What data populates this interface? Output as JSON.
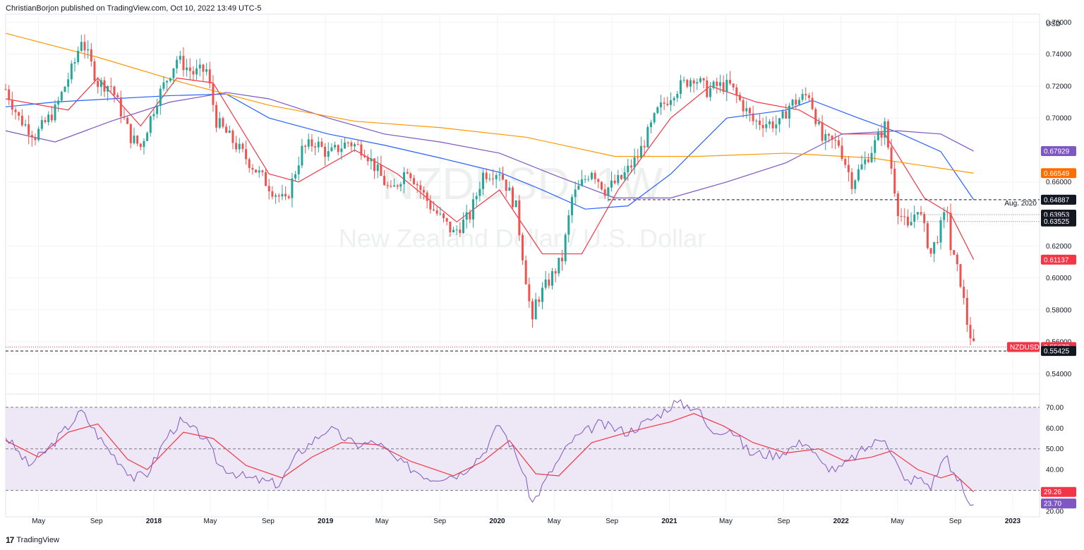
{
  "header": {
    "author": "ChristianBorjon",
    "published_text": "published on TradingView.com, Oct 10, 2022 13:49 UTC-5"
  },
  "watermark": {
    "symbol": "NZDUSD, 1W",
    "description": "New Zealand Dollar / U.S. Dollar"
  },
  "footer": {
    "logo_glyph": "17",
    "brand": "TradingView"
  },
  "colors": {
    "up": "#26a69a",
    "down": "#ef5350",
    "sma_red": "#f23645",
    "sma_blue": "#2962ff",
    "sma_purple": "#7e57c2",
    "sma_orange": "#ff9800",
    "rsi_line": "#7e57c2",
    "rsi_ma": "#f23645",
    "rsi_band": "#ede7f6"
  },
  "chart_data": [
    {
      "type": "candlestick",
      "symbol": "NZDUSD",
      "timeframe": "1W",
      "currency": "USD",
      "ylim": [
        0.53,
        0.765
      ],
      "y_ticks": [
        "0.76000",
        "0.74000",
        "0.72000",
        "0.70000",
        "0.66000",
        "0.62000",
        "0.60000",
        "0.58000",
        "0.56000",
        "0.54000"
      ],
      "x_ticks": [
        "May",
        "Sep",
        "2018",
        "May",
        "Sep",
        "2019",
        "May",
        "Sep",
        "2020",
        "May",
        "Sep",
        "2021",
        "May",
        "Sep",
        "2022",
        "May",
        "Sep",
        "2023"
      ],
      "x_range": [
        "2017-02-20",
        "2023-02-27"
      ],
      "tick_dates": [
        "2017-05-01",
        "2017-09-01",
        "2018-01-01",
        "2018-05-01",
        "2018-09-01",
        "2019-01-01",
        "2019-05-01",
        "2019-09-01",
        "2020-01-01",
        "2020-05-01",
        "2020-09-01",
        "2021-01-01",
        "2021-05-01",
        "2021-09-01",
        "2022-01-01",
        "2022-05-01",
        "2022-09-01",
        "2023-01-01"
      ],
      "close_path": [
        [
          "2017-02-20",
          0.718
        ],
        [
          "2017-03-20",
          0.7
        ],
        [
          "2017-04-24",
          0.689
        ],
        [
          "2017-06-05",
          0.705
        ],
        [
          "2017-07-17",
          0.735
        ],
        [
          "2017-07-31",
          0.75
        ],
        [
          "2017-09-04",
          0.722
        ],
        [
          "2017-10-02",
          0.72
        ],
        [
          "2017-11-13",
          0.688
        ],
        [
          "2017-12-04",
          0.682
        ],
        [
          "2018-01-08",
          0.712
        ],
        [
          "2018-02-19",
          0.737
        ],
        [
          "2018-03-26",
          0.728
        ],
        [
          "2018-04-23",
          0.73
        ],
        [
          "2018-05-14",
          0.698
        ],
        [
          "2018-06-11",
          0.688
        ],
        [
          "2018-07-16",
          0.675
        ],
        [
          "2018-09-10",
          0.655
        ],
        [
          "2018-10-08",
          0.647
        ],
        [
          "2018-11-12",
          0.68
        ],
        [
          "2018-12-10",
          0.685
        ],
        [
          "2019-01-07",
          0.677
        ],
        [
          "2019-02-18",
          0.685
        ],
        [
          "2019-03-25",
          0.68
        ],
        [
          "2019-05-20",
          0.653
        ],
        [
          "2019-06-24",
          0.669
        ],
        [
          "2019-08-12",
          0.645
        ],
        [
          "2019-09-30",
          0.628
        ],
        [
          "2019-11-04",
          0.639
        ],
        [
          "2019-12-02",
          0.665
        ],
        [
          "2020-01-06",
          0.667
        ],
        [
          "2020-02-10",
          0.644
        ],
        [
          "2020-03-16",
          0.57
        ],
        [
          "2020-03-23",
          0.585
        ],
        [
          "2020-04-20",
          0.598
        ],
        [
          "2020-05-18",
          0.612
        ],
        [
          "2020-06-08",
          0.65
        ],
        [
          "2020-07-20",
          0.668
        ],
        [
          "2020-08-17",
          0.655
        ],
        [
          "2020-09-21",
          0.662
        ],
        [
          "2020-10-26",
          0.676
        ],
        [
          "2020-12-07",
          0.704
        ],
        [
          "2021-01-11",
          0.717
        ],
        [
          "2021-02-22",
          0.726
        ],
        [
          "2021-03-22",
          0.717
        ],
        [
          "2021-04-12",
          0.72
        ],
        [
          "2021-05-10",
          0.72
        ],
        [
          "2021-06-28",
          0.698
        ],
        [
          "2021-08-23",
          0.696
        ],
        [
          "2021-09-13",
          0.708
        ],
        [
          "2021-10-25",
          0.715
        ],
        [
          "2021-11-22",
          0.686
        ],
        [
          "2021-12-27",
          0.684
        ],
        [
          "2022-01-24",
          0.66
        ],
        [
          "2022-02-21",
          0.673
        ],
        [
          "2022-04-04",
          0.695
        ],
        [
          "2022-05-02",
          0.643
        ],
        [
          "2022-05-23",
          0.63
        ],
        [
          "2022-06-13",
          0.645
        ],
        [
          "2022-07-11",
          0.615
        ],
        [
          "2022-08-15",
          0.643
        ],
        [
          "2022-08-22",
          0.618
        ],
        [
          "2022-09-12",
          0.598
        ],
        [
          "2022-09-26",
          0.572
        ],
        [
          "2022-10-10",
          0.5567
        ]
      ],
      "moving_averages": [
        {
          "color": "#f23645",
          "last": 0.61137,
          "path": [
            [
              "2017-02-20",
              0.712
            ],
            [
              "2017-07-03",
              0.705
            ],
            [
              "2017-09-04",
              0.725
            ],
            [
              "2017-12-04",
              0.695
            ],
            [
              "2018-02-19",
              0.725
            ],
            [
              "2018-05-07",
              0.722
            ],
            [
              "2018-09-03",
              0.665
            ],
            [
              "2018-11-05",
              0.66
            ],
            [
              "2019-03-04",
              0.68
            ],
            [
              "2019-06-03",
              0.665
            ],
            [
              "2019-10-07",
              0.635
            ],
            [
              "2020-01-06",
              0.655
            ],
            [
              "2020-04-06",
              0.615
            ],
            [
              "2020-06-29",
              0.615
            ],
            [
              "2020-09-14",
              0.655
            ],
            [
              "2021-01-04",
              0.7
            ],
            [
              "2021-03-29",
              0.72
            ],
            [
              "2021-07-05",
              0.71
            ],
            [
              "2021-10-04",
              0.705
            ],
            [
              "2022-01-03",
              0.69
            ],
            [
              "2022-04-04",
              0.69
            ],
            [
              "2022-06-27",
              0.65
            ],
            [
              "2022-08-22",
              0.64
            ],
            [
              "2022-10-10",
              0.61137
            ]
          ]
        },
        {
          "color": "#2962ff",
          "last": 0.64889,
          "path": [
            [
              "2017-02-20",
              0.707
            ],
            [
              "2017-06-05",
              0.71
            ],
            [
              "2017-10-02",
              0.712
            ],
            [
              "2018-02-05",
              0.714
            ],
            [
              "2018-06-04",
              0.715
            ],
            [
              "2018-09-03",
              0.7
            ],
            [
              "2019-01-07",
              0.69
            ],
            [
              "2019-05-06",
              0.683
            ],
            [
              "2019-09-02",
              0.675
            ],
            [
              "2020-01-06",
              0.666
            ],
            [
              "2020-04-06",
              0.655
            ],
            [
              "2020-07-06",
              0.643
            ],
            [
              "2020-10-05",
              0.645
            ],
            [
              "2021-01-04",
              0.665
            ],
            [
              "2021-05-03",
              0.7
            ],
            [
              "2021-09-06",
              0.705
            ],
            [
              "2021-11-01",
              0.711
            ],
            [
              "2022-02-07",
              0.7
            ],
            [
              "2022-05-02",
              0.691
            ],
            [
              "2022-08-01",
              0.679
            ],
            [
              "2022-10-10",
              0.64889
            ]
          ]
        },
        {
          "color": "#7e57c2",
          "last": 0.67929,
          "path": [
            [
              "2017-02-20",
              0.692
            ],
            [
              "2017-06-05",
              0.685
            ],
            [
              "2017-10-02",
              0.698
            ],
            [
              "2018-02-05",
              0.71
            ],
            [
              "2018-06-04",
              0.716
            ],
            [
              "2018-09-03",
              0.712
            ],
            [
              "2019-01-07",
              0.7
            ],
            [
              "2019-05-06",
              0.69
            ],
            [
              "2019-09-02",
              0.685
            ],
            [
              "2020-01-06",
              0.678
            ],
            [
              "2020-05-04",
              0.664
            ],
            [
              "2020-09-07",
              0.65
            ],
            [
              "2021-01-04",
              0.65
            ],
            [
              "2021-05-03",
              0.66
            ],
            [
              "2021-09-06",
              0.672
            ],
            [
              "2022-01-03",
              0.69
            ],
            [
              "2022-05-02",
              0.692
            ],
            [
              "2022-08-01",
              0.69
            ],
            [
              "2022-10-10",
              0.67929
            ]
          ]
        },
        {
          "color": "#ff9800",
          "last": 0.66549,
          "path": [
            [
              "2017-02-20",
              0.753
            ],
            [
              "2017-09-04",
              0.738
            ],
            [
              "2018-03-05",
              0.722
            ],
            [
              "2018-09-03",
              0.708
            ],
            [
              "2019-03-04",
              0.698
            ],
            [
              "2019-09-02",
              0.694
            ],
            [
              "2020-03-02",
              0.688
            ],
            [
              "2020-09-07",
              0.676
            ],
            [
              "2021-03-01",
              0.676
            ],
            [
              "2021-09-06",
              0.678
            ],
            [
              "2022-03-07",
              0.675
            ],
            [
              "2022-10-10",
              0.66549
            ]
          ]
        }
      ],
      "horizontal_levels": [
        {
          "value": 0.64887,
          "label": "Aug. 2020",
          "from": "2020-08-24",
          "color": "#131722"
        },
        {
          "value": 0.63953,
          "from": "2022-06-13",
          "color": "#787b86"
        },
        {
          "value": 0.63525,
          "from": "2022-06-13",
          "color": "#787b86"
        },
        {
          "value": 0.55425,
          "from": "2017-02-20",
          "color": "#131722"
        }
      ],
      "price_tags": [
        {
          "value": 0.67929,
          "text": "0.67929",
          "bg": "#7e57c2"
        },
        {
          "value": 0.66549,
          "text": "0.66549",
          "bg": "#ff6d00"
        },
        {
          "value": 0.64889,
          "text": "0.64889",
          "bg": "#2962ff"
        },
        {
          "value": 0.64887,
          "text": "0.64887",
          "bg": "#131722"
        },
        {
          "value": 0.63953,
          "text": "0.63953",
          "bg": "#131722"
        },
        {
          "value": 0.63525,
          "text": "0.63525",
          "bg": "#131722"
        },
        {
          "value": 0.61137,
          "text": "0.61137",
          "bg": "#f23645"
        },
        {
          "value": 0.55673,
          "text": "0.55673",
          "bg": "#f23645",
          "symbol_label": "NZDUSD"
        },
        {
          "value": 0.55425,
          "text": "0.55425",
          "bg": "#131722"
        }
      ],
      "last_price": 0.55673
    },
    {
      "type": "line",
      "indicator": "RSI",
      "ylim": [
        20,
        73
      ],
      "y_ticks": [
        "70.00",
        "60.00",
        "50.00",
        "40.00",
        "30.00",
        "20.00"
      ],
      "band": [
        30,
        70
      ],
      "midline": 50,
      "rsi_path": [
        [
          "2017-02-20",
          56
        ],
        [
          "2017-04-10",
          42
        ],
        [
          "2017-05-22",
          50
        ],
        [
          "2017-07-31",
          68
        ],
        [
          "2017-09-18",
          52
        ],
        [
          "2017-11-20",
          36
        ],
        [
          "2017-12-18",
          38
        ],
        [
          "2018-01-29",
          56
        ],
        [
          "2018-02-26",
          63
        ],
        [
          "2018-04-16",
          56
        ],
        [
          "2018-05-21",
          42
        ],
        [
          "2018-07-16",
          36
        ],
        [
          "2018-09-24",
          33
        ],
        [
          "2018-11-05",
          48
        ],
        [
          "2019-01-07",
          60
        ],
        [
          "2019-03-04",
          52
        ],
        [
          "2019-04-22",
          53
        ],
        [
          "2019-06-03",
          44
        ],
        [
          "2019-08-12",
          36
        ],
        [
          "2019-10-14",
          38
        ],
        [
          "2019-12-02",
          48
        ],
        [
          "2020-01-06",
          62
        ],
        [
          "2020-02-17",
          44
        ],
        [
          "2020-03-16",
          24
        ],
        [
          "2020-04-27",
          40
        ],
        [
          "2020-06-08",
          54
        ],
        [
          "2020-08-03",
          62
        ],
        [
          "2020-10-05",
          58
        ],
        [
          "2020-12-07",
          66
        ],
        [
          "2021-01-11",
          72
        ],
        [
          "2021-03-01",
          70
        ],
        [
          "2021-03-29",
          58
        ],
        [
          "2021-05-10",
          60
        ],
        [
          "2021-06-21",
          48
        ],
        [
          "2021-08-16",
          47
        ],
        [
          "2021-10-18",
          54
        ],
        [
          "2021-11-22",
          42
        ],
        [
          "2021-12-27",
          40
        ],
        [
          "2022-02-14",
          49
        ],
        [
          "2022-04-04",
          56
        ],
        [
          "2022-05-16",
          34
        ],
        [
          "2022-06-13",
          36
        ],
        [
          "2022-07-11",
          32
        ],
        [
          "2022-08-15",
          49
        ],
        [
          "2022-08-22",
          38
        ],
        [
          "2022-09-12",
          34
        ],
        [
          "2022-09-26",
          25
        ],
        [
          "2022-10-10",
          23.7
        ]
      ],
      "rsi_ma_path": [
        [
          "2017-02-20",
          54
        ],
        [
          "2017-05-01",
          46
        ],
        [
          "2017-07-03",
          58
        ],
        [
          "2017-09-04",
          62
        ],
        [
          "2017-11-06",
          45
        ],
        [
          "2017-12-18",
          40
        ],
        [
          "2018-03-05",
          58
        ],
        [
          "2018-05-07",
          55
        ],
        [
          "2018-07-16",
          42
        ],
        [
          "2018-10-01",
          36
        ],
        [
          "2018-12-03",
          46
        ],
        [
          "2019-02-04",
          53
        ],
        [
          "2019-04-22",
          52
        ],
        [
          "2019-07-01",
          44
        ],
        [
          "2019-09-30",
          37
        ],
        [
          "2019-12-02",
          44
        ],
        [
          "2020-01-27",
          54
        ],
        [
          "2020-03-23",
          38
        ],
        [
          "2020-05-11",
          37
        ],
        [
          "2020-07-20",
          53
        ],
        [
          "2020-10-05",
          58
        ],
        [
          "2021-01-04",
          63
        ],
        [
          "2021-02-22",
          67
        ],
        [
          "2021-04-26",
          61
        ],
        [
          "2021-06-28",
          53
        ],
        [
          "2021-09-06",
          48
        ],
        [
          "2021-11-15",
          50
        ],
        [
          "2022-01-10",
          44
        ],
        [
          "2022-03-07",
          46
        ],
        [
          "2022-04-18",
          49
        ],
        [
          "2022-06-13",
          40
        ],
        [
          "2022-08-01",
          36
        ],
        [
          "2022-08-29",
          38
        ],
        [
          "2022-10-10",
          29.26
        ]
      ],
      "tags": [
        {
          "value": 29.26,
          "text": "29.26",
          "bg": "#f23645"
        },
        {
          "value": 23.7,
          "text": "23.70",
          "bg": "#7e57c2"
        }
      ]
    }
  ]
}
